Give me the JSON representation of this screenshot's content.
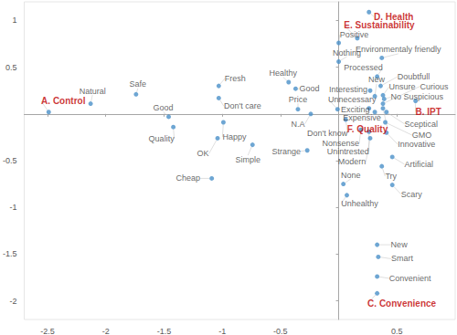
{
  "chart_data": {
    "type": "scatter",
    "color": "#4a90c8",
    "grid": false,
    "xlim": [
      -2.7,
      1
    ],
    "xticks": [
      -2.5,
      -2,
      -1.5,
      -1,
      -0.5,
      0.5
    ],
    "ylim": [
      -2.2,
      1.2
    ],
    "yticks": [
      -2,
      -1.5,
      -1,
      -0.5,
      0.5,
      1
    ],
    "series": [
      {
        "color": "#404040",
        "labels": [
          "Natural",
          "Safe",
          "Good",
          "Quality",
          "Fresh",
          "Don't care",
          "Happy",
          "OK",
          "Simple",
          "Cheap",
          "Healthy",
          "Good",
          "Price",
          "N.A",
          "Unnecessary",
          "Strange",
          "Don't know",
          "Positive",
          "Nothing",
          "Environmentaly friendly",
          "Processed",
          "Doubtfull",
          "Interesting",
          "New",
          "Unsure",
          "Curious",
          "No Suspicious",
          "Exciting",
          "Expensive",
          "Sceptical",
          "GMO",
          "Nonsense",
          "Unintrested",
          "Modern",
          "Innovative",
          "Artificial",
          "Try",
          "None",
          "Scary",
          "Unhealthy",
          "New",
          "Smart",
          "Convenient"
        ],
        "values": [
          [
            -2.13,
            0.11
          ],
          [
            -1.74,
            0.21
          ],
          [
            -1.46,
            -0.03
          ],
          [
            -1.42,
            -0.14
          ],
          [
            -1.03,
            0.3
          ],
          [
            -1.03,
            0.17
          ],
          [
            -0.99,
            -0.09
          ],
          [
            -1.04,
            -0.26
          ],
          [
            -0.74,
            -0.33
          ],
          [
            -1.09,
            -0.69
          ],
          [
            -0.43,
            0.34
          ],
          [
            -0.37,
            0.27
          ],
          [
            -0.35,
            0.05
          ],
          [
            -0.24,
            0.0
          ],
          [
            -0.01,
            0.05
          ],
          [
            -0.27,
            -0.39
          ],
          [
            0.06,
            -0.06
          ],
          [
            0.0,
            0.76
          ],
          [
            0.0,
            0.56
          ],
          [
            0.37,
            0.6
          ],
          [
            0.33,
            0.4
          ],
          [
            0.36,
            0.3
          ],
          [
            0.27,
            0.25
          ],
          [
            0.31,
            0.19
          ],
          [
            0.38,
            0.2
          ],
          [
            0.38,
            0.11
          ],
          [
            0.39,
            0.16
          ],
          [
            0.26,
            0.06
          ],
          [
            0.31,
            0.02
          ],
          [
            0.41,
            0.02
          ],
          [
            0.4,
            -0.09
          ],
          [
            0.19,
            -0.17
          ],
          [
            0.26,
            -0.19
          ],
          [
            0.27,
            -0.26
          ],
          [
            0.41,
            -0.2
          ],
          [
            0.46,
            -0.46
          ],
          [
            0.37,
            -0.56
          ],
          [
            0.04,
            -0.75
          ],
          [
            0.46,
            -0.76
          ],
          [
            0.07,
            -0.87
          ],
          [
            0.33,
            -1.4
          ],
          [
            0.34,
            -1.53
          ],
          [
            0.33,
            -1.74
          ]
        ]
      },
      {
        "color": "#c00000",
        "labels": [
          "A. Control",
          "B. IPT",
          "C. Convenience",
          "D. Health",
          "E. Sustainability",
          "F. Quality"
        ],
        "values": [
          [
            -2.49,
            0.02
          ],
          [
            0.66,
            0.14
          ],
          [
            0.33,
            -1.92
          ],
          [
            0.26,
            1.09
          ],
          [
            0.16,
            0.81
          ],
          [
            0.38,
            0.06
          ]
        ]
      }
    ]
  }
}
